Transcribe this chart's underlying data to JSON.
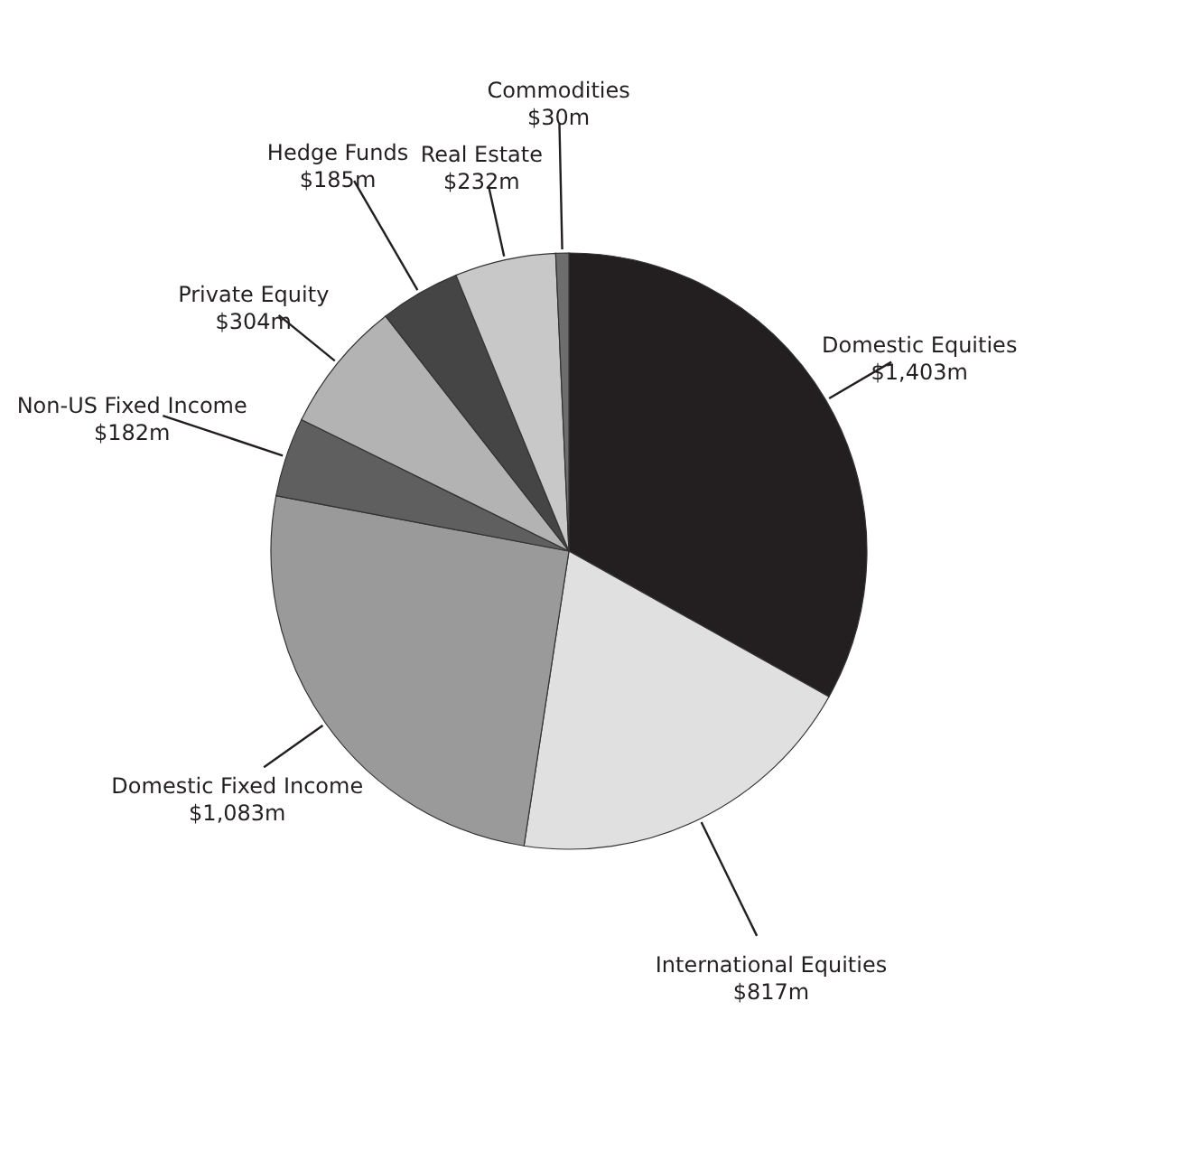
{
  "chart_data": {
    "type": "pie",
    "categories": [
      "Domestic Equities",
      "International Equities",
      "Domestic Fixed Income",
      "Non-US Fixed Income",
      "Private Equity",
      "Hedge Funds",
      "Real Estate",
      "Commodities"
    ],
    "values": [
      1403,
      817,
      1083,
      182,
      304,
      185,
      232,
      30
    ],
    "value_labels": [
      "$1,403m",
      "$817m",
      "$1,083m",
      "$182m",
      "$304m",
      "$185m",
      "$232m",
      "$30m"
    ],
    "colors": [
      "#231f20",
      "#e0e0e0",
      "#9a9a9a",
      "#5f5f5f",
      "#b3b3b3",
      "#454545",
      "#c8c8c8",
      "#6d6d6d"
    ],
    "legend": false
  }
}
